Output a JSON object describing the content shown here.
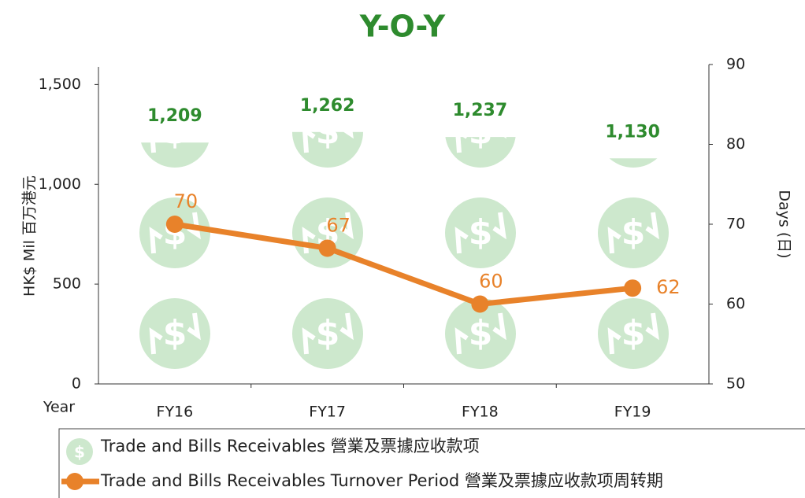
{
  "chart_data": {
    "type": "pictograph-bar-line",
    "title": "Y-O-Y",
    "y_label": "HK$ Mil 百万港元",
    "y2_label": "Days (日)",
    "x_label": "Year",
    "categories": [
      "FY16",
      "FY17",
      "FY18",
      "FY19"
    ],
    "series": [
      {
        "name": "Trade and Bills Receivables 營業及票據应收款项",
        "color": "#cde8cd",
        "label_color": "#2e8b2e",
        "values": [
          1209,
          1262,
          1237,
          1130
        ]
      },
      {
        "name": "Trade and Bills Receivables Turnover Period 營業及票據应收款项周转期",
        "color": "#e8822a",
        "values": [
          70,
          67,
          60,
          62
        ],
        "axis": "y2"
      }
    ],
    "ylim": [
      0,
      1600
    ],
    "yticks": [
      0,
      500,
      {
        "value": 1000,
        "label": "1,000"
      },
      {
        "value": 1500,
        "label": "1,500"
      }
    ],
    "y2lim": [
      50,
      90
    ],
    "y2ticks": [
      50,
      60,
      70,
      80,
      90
    ],
    "value_labels": [
      "1,209",
      "1,262",
      "1,237",
      "1,130"
    ]
  }
}
